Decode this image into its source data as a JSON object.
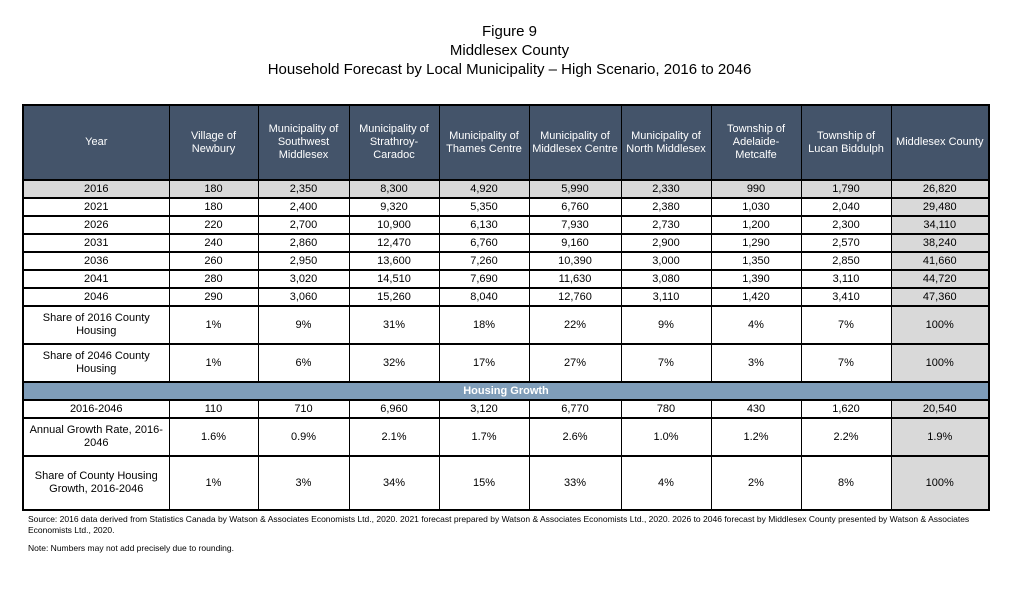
{
  "title": {
    "line1": "Figure 9",
    "line2": "Middlesex County",
    "line3": "Household Forecast by Local Municipality – High Scenario, 2016 to 2046"
  },
  "colors": {
    "header_bg": "#44546A",
    "band_bg": "#7F9DB9",
    "highlight_bg": "#D9D9D9",
    "header_text": "#FFFFFF"
  },
  "table": {
    "columns": [
      "Year",
      "Village of Newbury",
      "Municipality of Southwest Middlesex",
      "Municipality of Strathroy-Caradoc",
      "Municipality of Thames Centre",
      "Municipality of Middlesex Centre",
      "Municipality of North Middlesex",
      "Township of Adelaide-Metcalfe",
      "Township of Lucan Biddulph",
      "Middlesex County"
    ],
    "year_rows": [
      {
        "label": "2016",
        "highlight": true,
        "values": [
          "180",
          "2,350",
          "8,300",
          "4,920",
          "5,990",
          "2,330",
          "990",
          "1,790",
          "26,820"
        ]
      },
      {
        "label": "2021",
        "highlight": false,
        "values": [
          "180",
          "2,400",
          "9,320",
          "5,350",
          "6,760",
          "2,380",
          "1,030",
          "2,040",
          "29,480"
        ]
      },
      {
        "label": "2026",
        "highlight": false,
        "values": [
          "220",
          "2,700",
          "10,900",
          "6,130",
          "7,930",
          "2,730",
          "1,200",
          "2,300",
          "34,110"
        ]
      },
      {
        "label": "2031",
        "highlight": false,
        "values": [
          "240",
          "2,860",
          "12,470",
          "6,760",
          "9,160",
          "2,900",
          "1,290",
          "2,570",
          "38,240"
        ]
      },
      {
        "label": "2036",
        "highlight": false,
        "values": [
          "260",
          "2,950",
          "13,600",
          "7,260",
          "10,390",
          "3,000",
          "1,350",
          "2,850",
          "41,660"
        ]
      },
      {
        "label": "2041",
        "highlight": false,
        "values": [
          "280",
          "3,020",
          "14,510",
          "7,690",
          "11,630",
          "3,080",
          "1,390",
          "3,110",
          "44,720"
        ]
      },
      {
        "label": "2046",
        "highlight": false,
        "values": [
          "290",
          "3,060",
          "15,260",
          "8,040",
          "12,760",
          "3,110",
          "1,420",
          "3,410",
          "47,360"
        ]
      }
    ],
    "share_rows": [
      {
        "label": "Share of 2016 County Housing",
        "values": [
          "1%",
          "9%",
          "31%",
          "18%",
          "22%",
          "9%",
          "4%",
          "7%",
          "100%"
        ]
      },
      {
        "label": "Share of 2046 County Housing",
        "values": [
          "1%",
          "6%",
          "32%",
          "17%",
          "27%",
          "7%",
          "3%",
          "7%",
          "100%"
        ]
      }
    ],
    "section_header": "Housing Growth",
    "growth_rows": [
      {
        "label": "2016-2046",
        "values": [
          "110",
          "710",
          "6,960",
          "3,120",
          "6,770",
          "780",
          "430",
          "1,620",
          "20,540"
        ]
      },
      {
        "label": "Annual Growth Rate, 2016-2046",
        "values": [
          "1.6%",
          "0.9%",
          "2.1%",
          "1.7%",
          "2.6%",
          "1.0%",
          "1.2%",
          "2.2%",
          "1.9%"
        ]
      },
      {
        "label": "Share of County Housing Growth, 2016-2046",
        "values": [
          "1%",
          "3%",
          "34%",
          "15%",
          "33%",
          "4%",
          "2%",
          "8%",
          "100%"
        ]
      }
    ]
  },
  "footnotes": {
    "source": "Source: 2016 data derived from Statistics Canada by Watson & Associates Economists Ltd., 2020. 2021 forecast prepared by Watson & Associates Economists Ltd., 2020. 2026 to 2046 forecast by Middlesex County presented by Watson & Associates Economists Ltd., 2020.",
    "note": "Note: Numbers may not add precisely due to rounding."
  }
}
